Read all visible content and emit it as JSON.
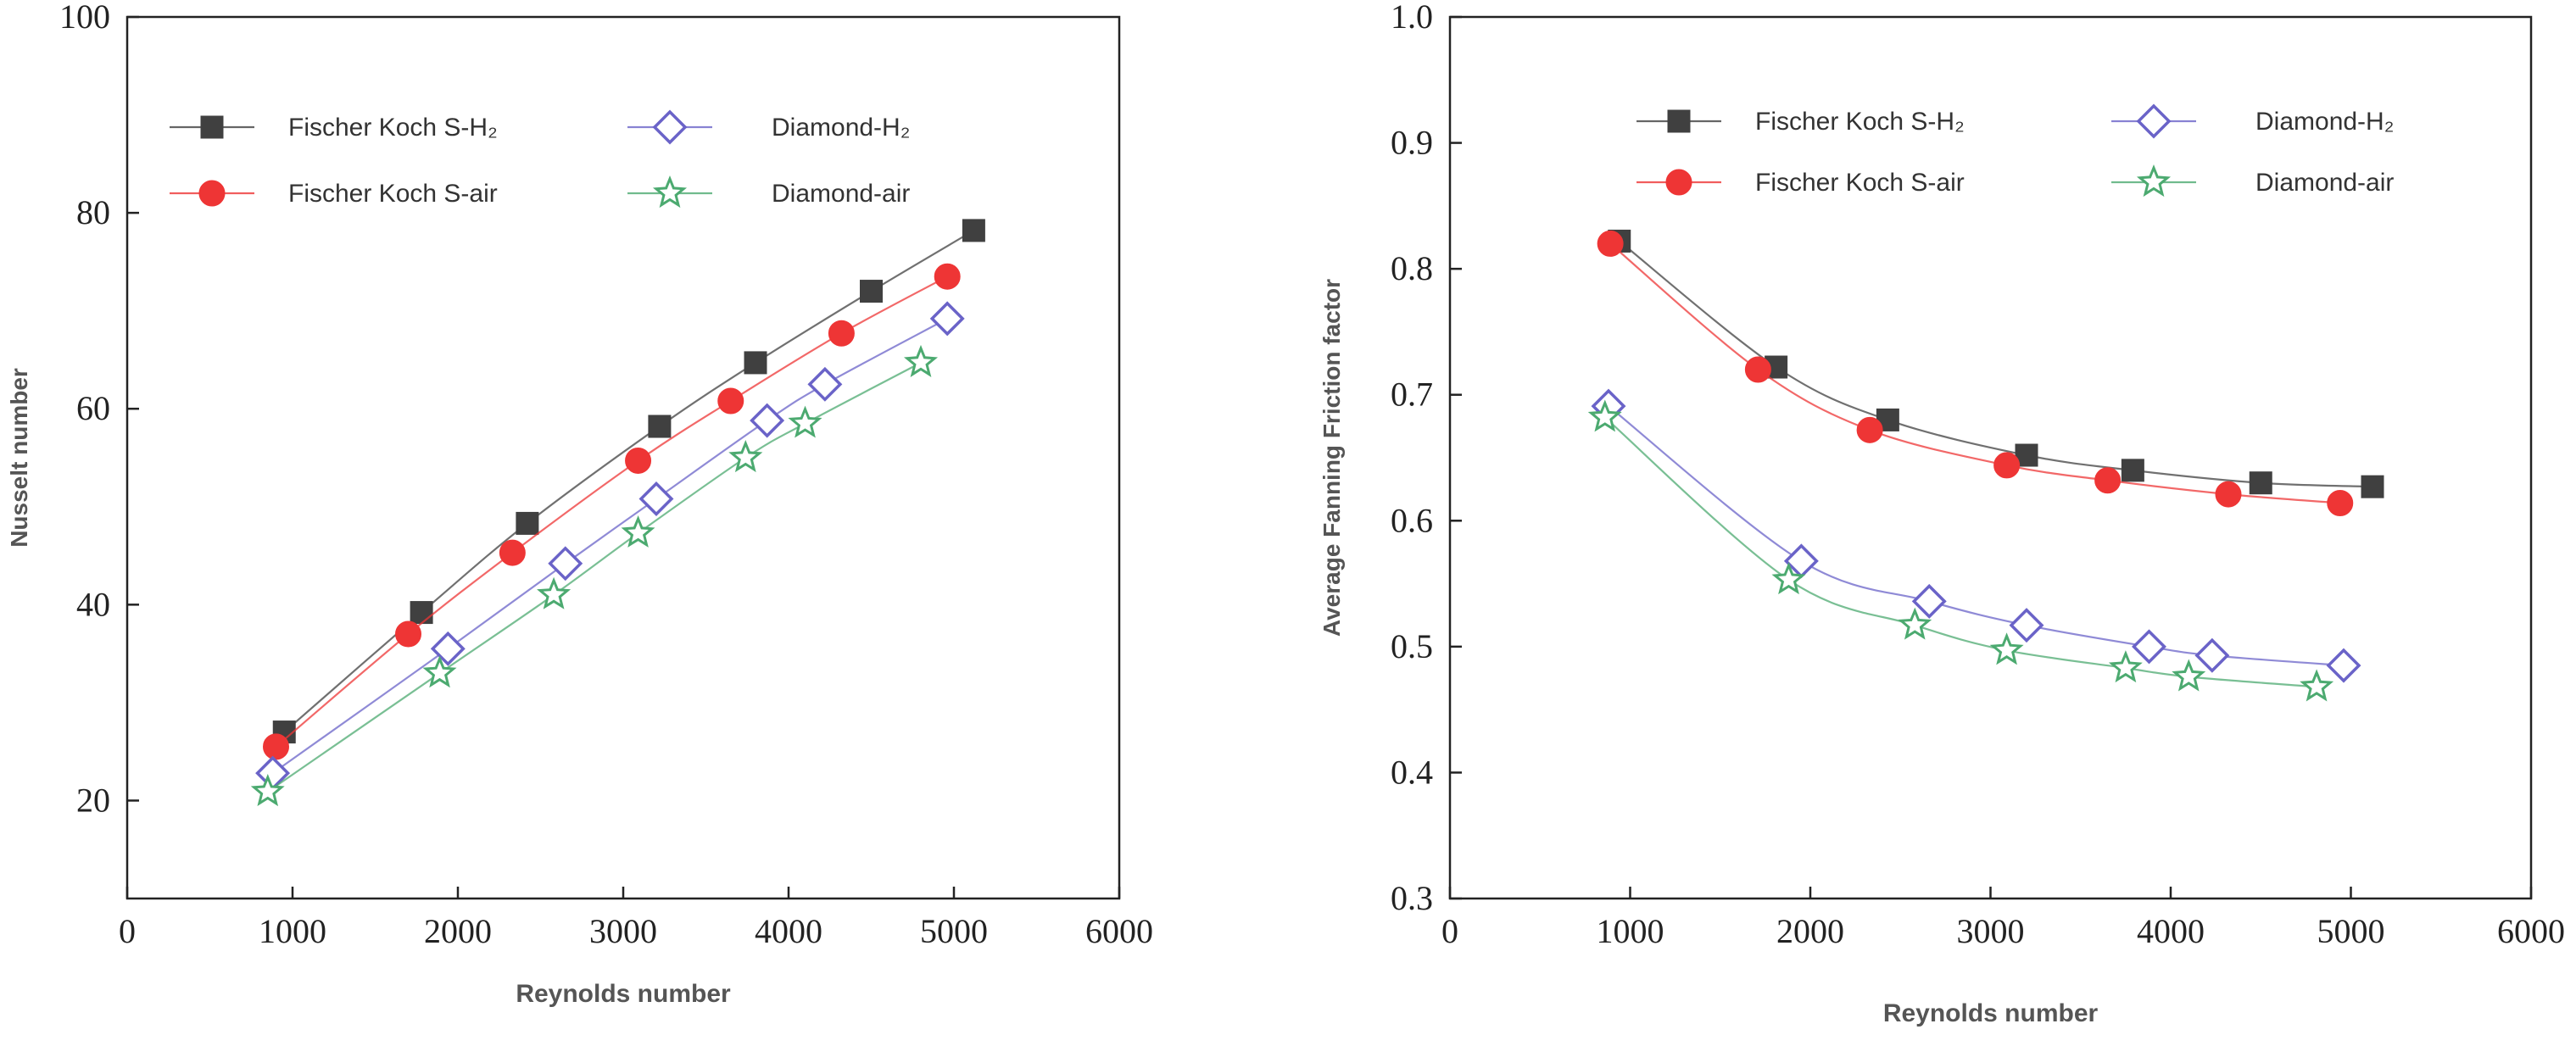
{
  "chart_data": [
    {
      "type": "line",
      "xlabel": "Reynolds number",
      "ylabel": "Nusselt number",
      "xlim": [
        0,
        6000
      ],
      "ylim": [
        10,
        100
      ],
      "xticks": [
        0,
        1000,
        2000,
        3000,
        4000,
        5000,
        6000
      ],
      "yticks": [
        20,
        40,
        60,
        80,
        100
      ],
      "legend": "top-left",
      "grid": false,
      "series": [
        {
          "name": "Fischer Koch S-H₂",
          "color": "#404040",
          "marker": "square",
          "x": [
            950,
            1780,
            2420,
            3220,
            3800,
            4500,
            5120
          ],
          "y": [
            27,
            39.2,
            48.3,
            58.2,
            64.7,
            72,
            78.2
          ]
        },
        {
          "name": "Fischer Koch S-air",
          "color": "#ee3535",
          "marker": "circle",
          "x": [
            900,
            1700,
            2330,
            3090,
            3650,
            4320,
            4960
          ],
          "y": [
            25.5,
            37,
            45.3,
            54.7,
            60.8,
            67.7,
            73.5
          ]
        },
        {
          "name": "Diamond-H₂",
          "color": "#6a63c8",
          "marker": "diamond",
          "x": [
            880,
            1940,
            2650,
            3200,
            3870,
            4220,
            4960
          ],
          "y": [
            22.8,
            35.5,
            44.2,
            50.8,
            58.8,
            62.5,
            69.2
          ]
        },
        {
          "name": "Diamond-air",
          "color": "#4caa70",
          "marker": "star",
          "x": [
            850,
            1890,
            2580,
            3090,
            3740,
            4100,
            4800
          ],
          "y": [
            20.9,
            33,
            41,
            47.3,
            55,
            58.5,
            64.7
          ]
        }
      ]
    },
    {
      "type": "line",
      "xlabel": "Reynolds number",
      "ylabel": "Average Fanning Friction factor",
      "xlim": [
        0,
        6000
      ],
      "ylim": [
        0.3,
        1.0
      ],
      "xticks": [
        0,
        1000,
        2000,
        3000,
        4000,
        5000,
        6000
      ],
      "yticks": [
        0.3,
        0.4,
        0.5,
        0.6,
        0.7,
        0.8,
        0.9,
        1.0
      ],
      "legend": "top-right",
      "grid": false,
      "series": [
        {
          "name": "Fischer Koch S-H₂",
          "color": "#404040",
          "marker": "square",
          "x": [
            940,
            1810,
            2430,
            3200,
            3790,
            4500,
            5120
          ],
          "y": [
            0.822,
            0.722,
            0.68,
            0.652,
            0.64,
            0.63,
            0.627
          ]
        },
        {
          "name": "Fischer Koch S-air",
          "color": "#ee3535",
          "marker": "circle",
          "x": [
            890,
            1710,
            2330,
            3090,
            3650,
            4320,
            4940
          ],
          "y": [
            0.82,
            0.72,
            0.672,
            0.644,
            0.632,
            0.621,
            0.614
          ]
        },
        {
          "name": "Diamond-H₂",
          "color": "#6a63c8",
          "marker": "diamond",
          "x": [
            880,
            1950,
            2660,
            3200,
            3880,
            4230,
            4960
          ],
          "y": [
            0.691,
            0.568,
            0.536,
            0.517,
            0.5,
            0.493,
            0.485
          ]
        },
        {
          "name": "Diamond-air",
          "color": "#4caa70",
          "marker": "star",
          "x": [
            860,
            1880,
            2580,
            3090,
            3750,
            4100,
            4810
          ],
          "y": [
            0.682,
            0.553,
            0.517,
            0.497,
            0.483,
            0.476,
            0.468
          ]
        }
      ]
    }
  ]
}
